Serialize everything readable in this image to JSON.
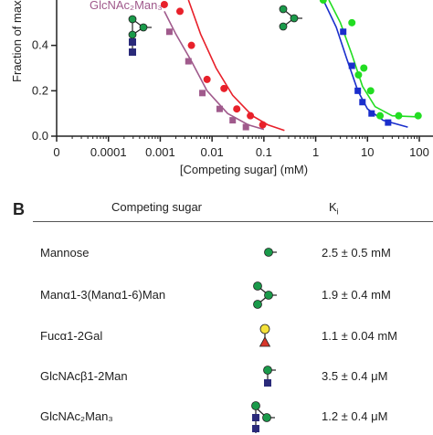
{
  "panel_a": {
    "ylabel": "Fraction of max",
    "xlabel": "[Competing sugar] (mM)",
    "label_glcnac2man3": "GlcNAc₂Man₃",
    "x_tick_labels": [
      "0",
      "0.0001",
      "0.001",
      "0.01",
      "0.1",
      "1",
      "10",
      "100"
    ],
    "y_tick_labels": [
      "0.0",
      "0.2",
      "0.4"
    ]
  },
  "chart_data": {
    "type": "scatter",
    "xscale": "log",
    "xlim": [
      1e-05,
      100
    ],
    "ylim": [
      0,
      0.6
    ],
    "series": [
      {
        "name": "GlcNAc₂Man₃",
        "color": "#a05a8c",
        "marker": "square",
        "x": [
          0.0015,
          0.0035,
          0.0065,
          0.014,
          0.025,
          0.045
        ],
        "y": [
          0.46,
          0.33,
          0.19,
          0.12,
          0.07,
          0.04
        ],
        "fit": [
          [
            0.0012,
            0.55
          ],
          [
            0.002,
            0.45
          ],
          [
            0.004,
            0.33
          ],
          [
            0.008,
            0.2
          ],
          [
            0.02,
            0.1
          ],
          [
            0.05,
            0.05
          ],
          [
            0.1,
            0.03
          ]
        ]
      },
      {
        "name": "",
        "color": "#e8202a",
        "marker": "circle",
        "x": [
          0.0012,
          0.0024,
          0.004,
          0.008,
          0.017,
          0.03,
          0.055,
          0.095
        ],
        "y": [
          0.58,
          0.55,
          0.4,
          0.25,
          0.21,
          0.12,
          0.09,
          0.05
        ],
        "fit": [
          [
            0.0035,
            0.6
          ],
          [
            0.006,
            0.45
          ],
          [
            0.012,
            0.3
          ],
          [
            0.025,
            0.18
          ],
          [
            0.06,
            0.09
          ],
          [
            0.12,
            0.05
          ],
          [
            0.25,
            0.025
          ]
        ]
      },
      {
        "name": "",
        "color": "#1a2ecc",
        "marker": "square",
        "x": [
          3.4,
          5.0,
          6.5,
          8.0,
          12.0,
          25.0
        ],
        "y": [
          0.46,
          0.31,
          0.2,
          0.15,
          0.1,
          0.06
        ],
        "fit": [
          [
            1.4,
            0.6
          ],
          [
            2.5,
            0.48
          ],
          [
            4.0,
            0.34
          ],
          [
            6.5,
            0.2
          ],
          [
            10.0,
            0.12
          ],
          [
            20.0,
            0.07
          ],
          [
            60.0,
            0.04
          ]
        ]
      },
      {
        "name": "",
        "color": "#22dd22",
        "marker": "circle",
        "x": [
          1.4,
          5.0,
          6.7,
          8.5,
          11.5,
          17.5,
          40.0,
          95.0
        ],
        "y": [
          0.6,
          0.5,
          0.27,
          0.3,
          0.2,
          0.09,
          0.09,
          0.09
        ],
        "fit": [
          [
            1.8,
            0.6
          ],
          [
            3.0,
            0.5
          ],
          [
            5.0,
            0.36
          ],
          [
            8.0,
            0.22
          ],
          [
            14.0,
            0.13
          ],
          [
            30.0,
            0.09
          ],
          [
            100.0,
            0.085
          ]
        ]
      }
    ]
  },
  "panel_b": {
    "label": "B",
    "header_sugar": "Competing sugar",
    "header_ki": "K",
    "header_ki_sub": "i",
    "rows": [
      {
        "name": "Mannose",
        "ki": "2.5 ± 0.5 mM",
        "glyph": "mannose"
      },
      {
        "name": "Manα1-3(Manα1-6)Man",
        "ki": "1.9 ± 0.4 mM",
        "glyph": "trimannose"
      },
      {
        "name": "Fucα1-2Gal",
        "ki": "1.1 ± 0.04 mM",
        "glyph": "fucose-galactose"
      },
      {
        "name": "GlcNAcβ1-2Man",
        "ki": "3.5 ± 0.4 μM",
        "glyph": "glcnac-mannose"
      },
      {
        "name": "GlcNAc₂Man₃",
        "ki": "1.2 ± 0.4 μM",
        "glyph": "glcnac2man3"
      }
    ]
  },
  "colors": {
    "mannose": "#1a9a4a",
    "glcnac": "#2a2a7a",
    "galactose": "#f5e23a",
    "fucose": "#d8362a"
  }
}
